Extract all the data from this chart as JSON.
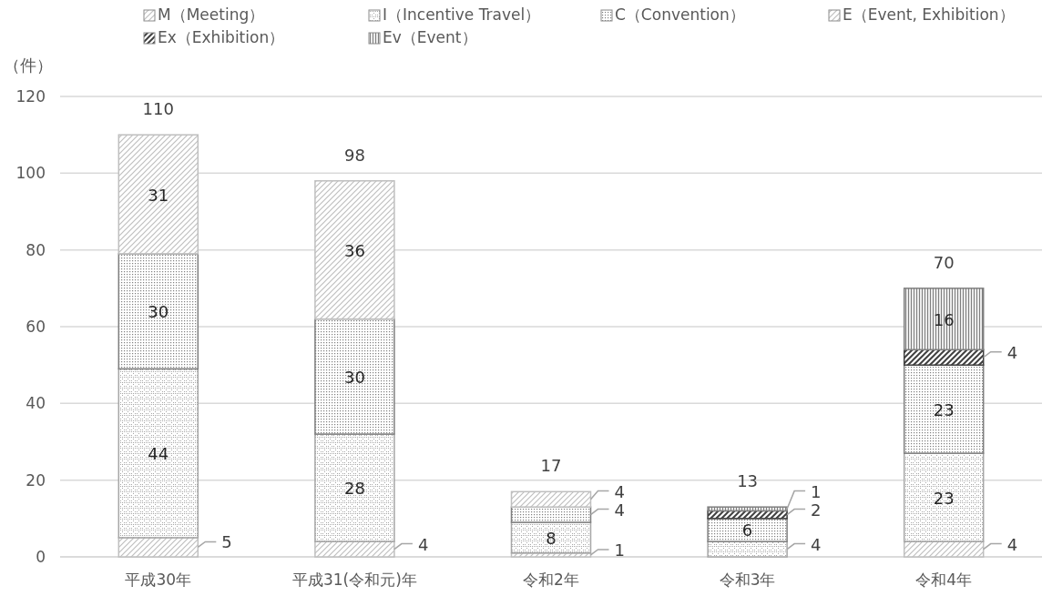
{
  "chart_data": {
    "type": "bar",
    "stacked": true,
    "ylabel": "（件）",
    "categories": [
      "平成30年",
      "平成31(令和元)年",
      "令和2年",
      "令和3年",
      "令和4年"
    ],
    "series": [
      {
        "name": "M（Meeting）",
        "color": "#bfbfbf",
        "values": [
          5,
          4,
          1,
          null,
          4
        ]
      },
      {
        "name": "I（Incentive Travel）",
        "color": "#a6a6a6",
        "values": [
          44,
          28,
          8,
          4,
          23
        ]
      },
      {
        "name": "C（Convention）",
        "color": "#7f7f7f",
        "values": [
          30,
          30,
          4,
          6,
          23
        ]
      },
      {
        "name": "E（Event, Exhibition）",
        "color": "#bfbfbf",
        "values": [
          31,
          36,
          4,
          null,
          null
        ]
      },
      {
        "name": "Ex（Exhibition）",
        "color": "#404040",
        "values": [
          null,
          null,
          null,
          2,
          4
        ]
      },
      {
        "name": "Ev（Event）",
        "color": "#7f7f7f",
        "values": [
          null,
          null,
          null,
          1,
          16
        ]
      }
    ],
    "totals": [
      "110",
      "98",
      "17",
      "13",
      "70"
    ],
    "ylim": [
      0,
      120
    ],
    "yticks": [
      0,
      20,
      40,
      60,
      80,
      100,
      120
    ],
    "grid": "y",
    "legend": "top",
    "data_labels": true
  }
}
